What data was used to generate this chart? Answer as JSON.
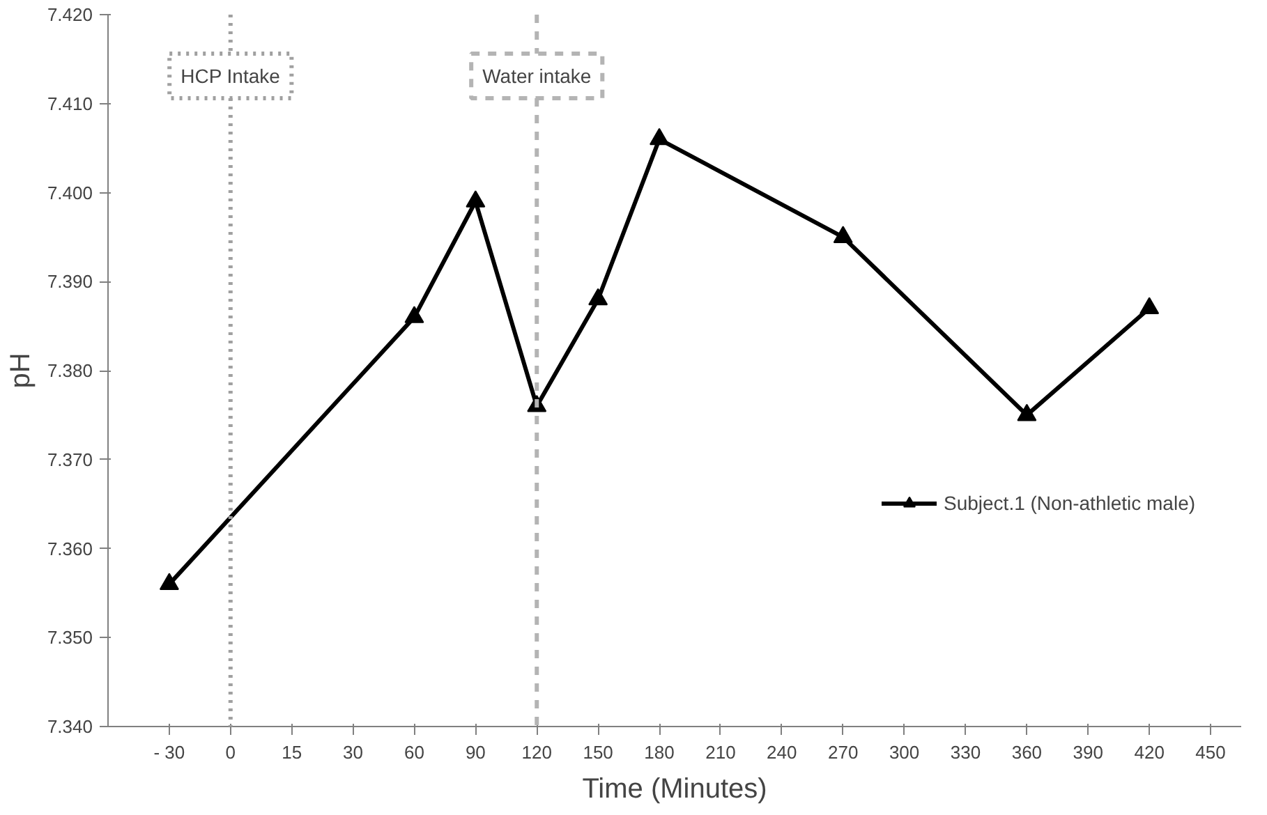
{
  "chart_data": {
    "type": "line",
    "xlabel": "Time (Minutes)",
    "ylabel": "pH",
    "categories": [
      "- 30",
      "0",
      "15",
      "30",
      "60",
      "90",
      "120",
      "150",
      "180",
      "210",
      "240",
      "270",
      "300",
      "330",
      "360",
      "390",
      "420",
      "450"
    ],
    "series": [
      {
        "name": "Subject.1 (Non-athletic male)",
        "color": "#000000",
        "values": [
          7.356,
          null,
          null,
          null,
          7.386,
          7.399,
          7.376,
          7.388,
          7.406,
          null,
          null,
          7.395,
          null,
          null,
          7.375,
          null,
          7.387,
          null
        ]
      }
    ],
    "ylim": [
      7.34,
      7.42
    ],
    "yticks": [
      {
        "value": 7.34,
        "label": "7.340"
      },
      {
        "value": 7.35,
        "label": "7.350"
      },
      {
        "value": 7.36,
        "label": "7.360"
      },
      {
        "value": 7.37,
        "label": "7.370"
      },
      {
        "value": 7.38,
        "label": "7.380"
      },
      {
        "value": 7.39,
        "label": "7.390"
      },
      {
        "value": 7.4,
        "label": "7.400"
      },
      {
        "value": 7.41,
        "label": "7.410"
      },
      {
        "value": 7.42,
        "label": "7.420"
      }
    ],
    "ref_lines": [
      {
        "axis": "x",
        "value": "0",
        "label": "HCP Intake",
        "color": "#a0a0a0",
        "line_style": "dotted"
      },
      {
        "axis": "x",
        "value": "120",
        "label": "Water intake",
        "color": "#b4b4b4",
        "line_style": "dashed"
      }
    ],
    "marker": "triangle",
    "line_style": "solid",
    "grid": false,
    "legend": "right"
  }
}
